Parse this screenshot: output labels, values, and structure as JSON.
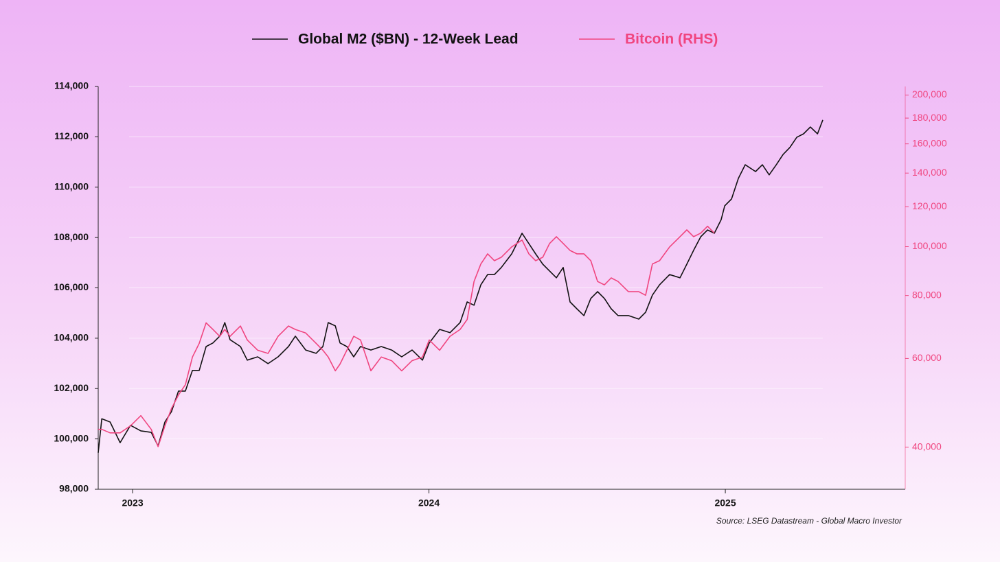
{
  "chart_data": {
    "type": "line",
    "source": "Source: LSEG Datastream - Global Macro Investor",
    "x": [
      2022.884,
      2022.896,
      2022.924,
      2022.958,
      2022.993,
      2023.028,
      2023.063,
      2023.086,
      2023.109,
      2023.131,
      2023.155,
      2023.178,
      2023.202,
      2023.225,
      2023.248,
      2023.271,
      2023.294,
      2023.311,
      2023.329,
      2023.364,
      2023.387,
      2023.422,
      2023.457,
      2023.491,
      2023.526,
      2023.549,
      2023.584,
      2023.619,
      2023.642,
      2023.66,
      2023.684,
      2023.7,
      2023.723,
      2023.746,
      2023.769,
      2023.804,
      2023.839,
      2023.874,
      2023.908,
      2023.943,
      2023.978,
      2024.001,
      2024.036,
      2024.071,
      2024.105,
      2024.129,
      2024.152,
      2024.175,
      2024.198,
      2024.221,
      2024.244,
      2024.279,
      2024.314,
      2024.337,
      2024.36,
      2024.384,
      2024.407,
      2024.43,
      2024.453,
      2024.476,
      2024.499,
      2024.523,
      2024.546,
      2024.569,
      2024.592,
      2024.615,
      2024.638,
      2024.673,
      2024.708,
      2024.731,
      2024.754,
      2024.778,
      2024.812,
      2024.847,
      2024.87,
      2024.893,
      2024.917,
      2024.94,
      2024.963,
      2024.986,
      2024.998,
      2025.021,
      2025.044,
      2025.067,
      2025.102,
      2025.125,
      2025.148,
      2025.172,
      2025.195,
      2025.218,
      2025.241,
      2025.264,
      2025.287,
      2025.311,
      2025.329
    ],
    "series": [
      {
        "name": "Global M2 ($BN) - 12-Week Lead",
        "color": "#111111",
        "values": [
          99450,
          100800,
          100670,
          99850,
          100540,
          100320,
          100260,
          99720,
          100670,
          101080,
          101900,
          101900,
          102720,
          102720,
          103670,
          103810,
          104080,
          104620,
          103940,
          103670,
          103130,
          103260,
          102990,
          103260,
          103670,
          104080,
          103530,
          103400,
          103670,
          104620,
          104490,
          103810,
          103670,
          103260,
          103670,
          103530,
          103670,
          103530,
          103260,
          103530,
          103130,
          103810,
          104350,
          104220,
          104620,
          105440,
          105310,
          106120,
          106530,
          106530,
          106810,
          107350,
          108170,
          107760,
          107350,
          106940,
          106670,
          106400,
          106810,
          105440,
          105170,
          104900,
          105580,
          105850,
          105580,
          105170,
          104900,
          104900,
          104760,
          105030,
          105710,
          106120,
          106530,
          106400,
          106940,
          107490,
          108030,
          108300,
          108170,
          108710,
          109260,
          109530,
          110350,
          110890,
          110620,
          110890,
          110490,
          110890,
          111300,
          111580,
          111980,
          112120,
          112390,
          112120,
          112670
        ]
      },
      {
        "name": "Bitcoin (RHS)",
        "color": "#f0457f",
        "axis": "y2",
        "values": [
          43400,
          43400,
          42700,
          42700,
          44100,
          46200,
          43400,
          40100,
          44100,
          47700,
          50800,
          53200,
          60400,
          64300,
          70600,
          68500,
          66400,
          68500,
          66400,
          69600,
          65300,
          62300,
          61400,
          66400,
          69600,
          68500,
          67400,
          64300,
          62300,
          60400,
          56700,
          58500,
          62300,
          66400,
          65300,
          56700,
          60400,
          59400,
          56700,
          59400,
          60400,
          65300,
          62300,
          66400,
          68500,
          71700,
          85300,
          92400,
          96800,
          93800,
          95300,
          99900,
          103100,
          96800,
          93800,
          95300,
          101500,
          104700,
          101500,
          98300,
          96800,
          96800,
          93800,
          85300,
          84000,
          86700,
          85300,
          81400,
          81400,
          80100,
          92400,
          93800,
          99900,
          104700,
          108000,
          104700,
          106400,
          109800,
          106400,
          null,
          null,
          null,
          null,
          null,
          null,
          null,
          null,
          null,
          null,
          null,
          null,
          null,
          null,
          null,
          null
        ]
      }
    ],
    "xlim": [
      2022.884,
      2025.607
    ],
    "xticks": [
      2023,
      2024,
      2025
    ],
    "ylim": [
      98000,
      114000
    ],
    "yticks": [
      {
        "value": 98000,
        "label": "98,000"
      },
      {
        "value": 100000,
        "label": "100,000"
      },
      {
        "value": 102000,
        "label": "102,000"
      },
      {
        "value": 104000,
        "label": "104,000"
      },
      {
        "value": 106000,
        "label": "106,000"
      },
      {
        "value": 108000,
        "label": "108,000"
      },
      {
        "value": 110000,
        "label": "110,000"
      },
      {
        "value": 112000,
        "label": "112,000"
      },
      {
        "value": 114000,
        "label": "114,000"
      }
    ],
    "y2lim": [
      33000,
      208000
    ],
    "y2scale": "log",
    "y2ticks": [
      {
        "value": 40000,
        "label": "40,000"
      },
      {
        "value": 60000,
        "label": "60,000"
      },
      {
        "value": 80000,
        "label": "80,000"
      },
      {
        "value": 100000,
        "label": "100,000"
      },
      {
        "value": 120000,
        "label": "120,000"
      },
      {
        "value": 140000,
        "label": "140,000"
      },
      {
        "value": 160000,
        "label": "160,000"
      },
      {
        "value": 180000,
        "label": "180,000"
      },
      {
        "value": 200000,
        "label": "200,000"
      }
    ],
    "grid": true,
    "legend": "top"
  }
}
